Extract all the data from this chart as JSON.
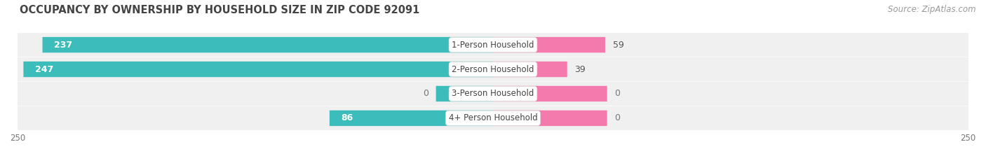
{
  "title": "OCCUPANCY BY OWNERSHIP BY HOUSEHOLD SIZE IN ZIP CODE 92091",
  "source": "Source: ZipAtlas.com",
  "categories": [
    "1-Person Household",
    "2-Person Household",
    "3-Person Household",
    "4+ Person Household"
  ],
  "owner_values": [
    237,
    247,
    0,
    86
  ],
  "renter_values": [
    59,
    39,
    0,
    0
  ],
  "owner_color": "#3DBCBC",
  "renter_color": "#F47AAD",
  "bar_bg_color": "#F0F0F0",
  "row_bg_color": "#F5F5F5",
  "axis_max": 250,
  "title_fontsize": 10.5,
  "source_fontsize": 8.5,
  "tick_fontsize": 8.5,
  "bar_height": 0.62,
  "figsize": [
    14.06,
    2.33
  ],
  "dpi": 100,
  "category_label_fontsize": 8.5,
  "stub_size": 30,
  "renter_stub_size": 60
}
